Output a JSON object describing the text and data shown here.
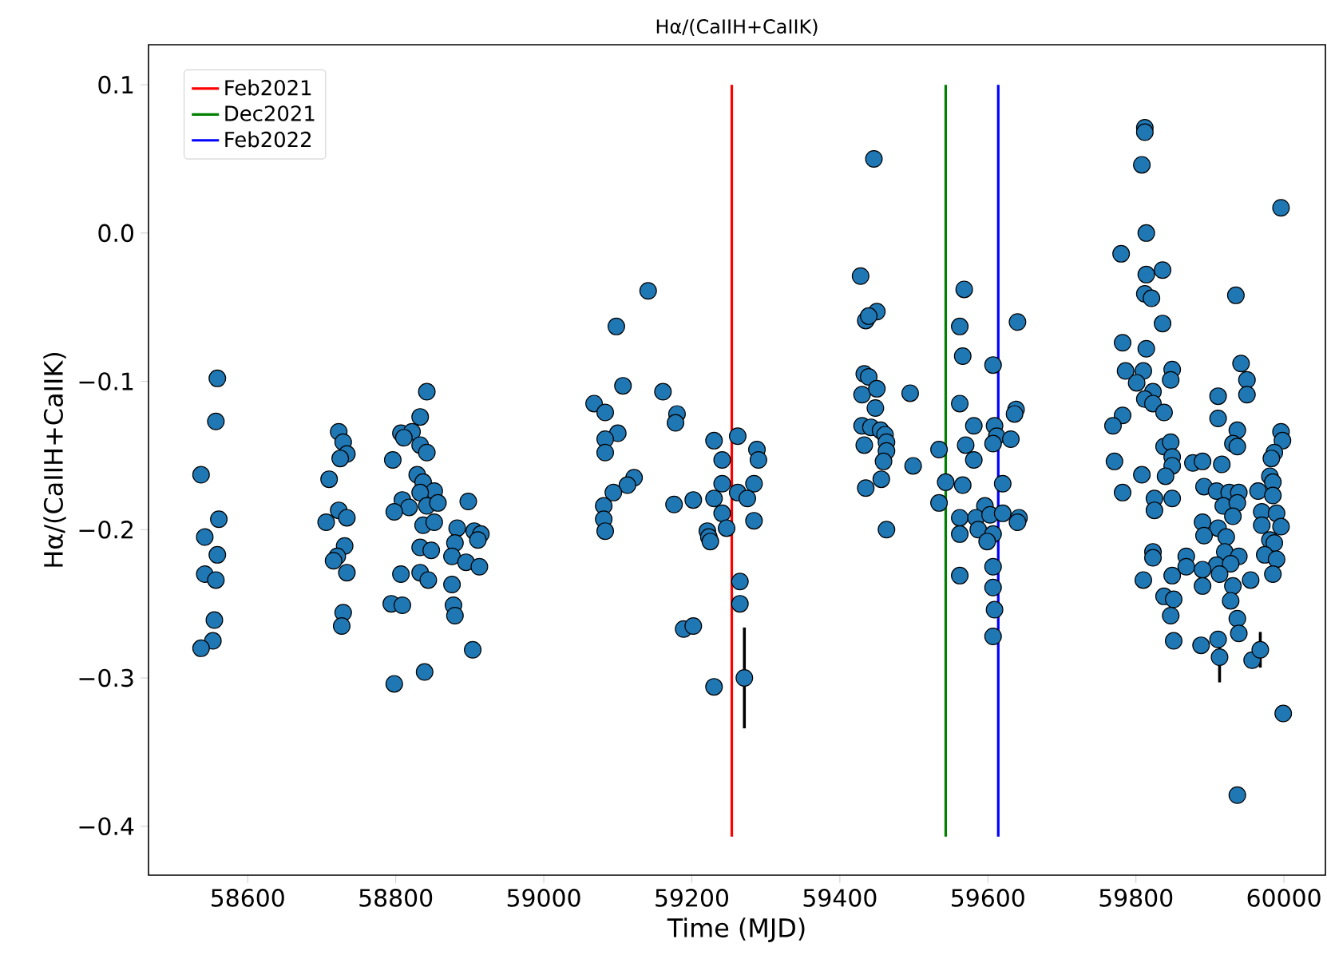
{
  "chart_data": {
    "type": "scatter",
    "title": "Hα/(CaIIH+CaIIK)",
    "xlabel": "Time (MJD)",
    "ylabel": "Hα/(CaIIH+CaIIK)",
    "xlim": [
      58466,
      60056
    ],
    "ylim": [
      -0.433,
      0.127
    ],
    "xticks": [
      58600,
      58800,
      59000,
      59200,
      59400,
      59600,
      59800,
      60000
    ],
    "yticks": [
      {
        "value": -0.4,
        "label": "−0.4"
      },
      {
        "value": -0.3,
        "label": "−0.3"
      },
      {
        "value": -0.2,
        "label": "−0.2"
      },
      {
        "value": -0.1,
        "label": "−0.1"
      },
      {
        "value": 0,
        "label": "0.0"
      },
      {
        "value": 0.1,
        "label": "0.1"
      }
    ],
    "marker": "circle",
    "legend": "top left",
    "grid": false,
    "series": [
      {
        "color": "#1f77b4",
        "x": [
          58559,
          58557,
          58537,
          58561,
          58542,
          58559,
          58542,
          58557,
          58555,
          58553,
          58537,
          58723,
          58729,
          58734,
          58725,
          58710,
          58723,
          58734,
          58706,
          58731,
          58721,
          58716,
          58734,
          58729,
          58727,
          58842,
          58833,
          58807,
          58822,
          58811,
          58833,
          58842,
          58796,
          58829,
          58837,
          58852,
          58833,
          58809,
          58818,
          58798,
          58842,
          58857,
          58898,
          58837,
          58852,
          58883,
          58906,
          58915,
          58880,
          58911,
          58833,
          58848,
          58876,
          58895,
          58913,
          58807,
          58833,
          58844,
          58876,
          58794,
          58809,
          58878,
          58880,
          58904,
          58839,
          58798,
          59141,
          59098,
          59107,
          59161,
          59068,
          59083,
          59180,
          59178,
          59100,
          59083,
          59230,
          59262,
          59288,
          59290,
          59083,
          59241,
          59122,
          59113,
          59094,
          59081,
          59176,
          59202,
          59241,
          59262,
          59284,
          59230,
          59275,
          59081,
          59241,
          59284,
          59083,
          59221,
          59223,
          59225,
          59247,
          59265,
          59265,
          59189,
          59202,
          59230,
          59446,
          59428,
          59568,
          59435,
          59450,
          59439,
          59562,
          59640,
          59566,
          59607,
          59433,
          59439,
          59430,
          59450,
          59495,
          59448,
          59562,
          59638,
          59636,
          59430,
          59442,
          59455,
          59461,
          59463,
          59581,
          59609,
          59612,
          59631,
          59433,
          59463,
          59534,
          59570,
          59607,
          59459,
          59581,
          59499,
          59456,
          59435,
          59543,
          59566,
          59620,
          59534,
          59596,
          59562,
          59584,
          59603,
          59620,
          59642,
          59640,
          59463,
          59562,
          59587,
          59607,
          59599,
          59562,
          59607,
          59607,
          59609,
          59607,
          59812,
          59812,
          59808,
          59996,
          59814,
          59780,
          59814,
          59836,
          59812,
          59821,
          59935,
          59836,
          59782,
          59814,
          59942,
          59950,
          59950,
          59911,
          59786,
          59810,
          59849,
          59847,
          59801,
          59823,
          59812,
          59823,
          59838,
          59782,
          59911,
          59769,
          59937,
          59931,
          59937,
          59996,
          59998,
          59987,
          59983,
          59838,
          59847,
          59849,
          59849,
          59840,
          59771,
          59808,
          59877,
          59890,
          59916,
          59981,
          59985,
          59782,
          59892,
          59909,
          59926,
          59939,
          59965,
          59985,
          59825,
          59849,
          59825,
          59918,
          59937,
          59931,
          59970,
          59990,
          59890,
          59911,
          59970,
          59996,
          59892,
          59922,
          59981,
          59987,
          59823,
          59823,
          59868,
          59920,
          59939,
          59974,
          59990,
          59868,
          59909,
          59928,
          59890,
          59849,
          59913,
          59985,
          59810,
          59890,
          59955,
          59838,
          59851,
          59931,
          59928,
          59847,
          59937,
          59939,
          59851,
          59888,
          59911,
          59957,
          59999,
          59937
        ],
        "values": [
          -0.098,
          -0.127,
          -0.163,
          -0.193,
          -0.205,
          -0.217,
          -0.23,
          -0.234,
          -0.261,
          -0.275,
          -0.28,
          -0.134,
          -0.141,
          -0.149,
          -0.152,
          -0.166,
          -0.187,
          -0.192,
          -0.195,
          -0.211,
          -0.218,
          -0.221,
          -0.229,
          -0.256,
          -0.265,
          -0.107,
          -0.124,
          -0.135,
          -0.134,
          -0.138,
          -0.143,
          -0.148,
          -0.153,
          -0.163,
          -0.168,
          -0.174,
          -0.175,
          -0.18,
          -0.185,
          -0.188,
          -0.184,
          -0.182,
          -0.181,
          -0.197,
          -0.195,
          -0.199,
          -0.201,
          -0.203,
          -0.209,
          -0.207,
          -0.212,
          -0.214,
          -0.218,
          -0.222,
          -0.225,
          -0.23,
          -0.229,
          -0.234,
          -0.237,
          -0.25,
          -0.251,
          -0.251,
          -0.258,
          -0.281,
          -0.296,
          -0.304,
          -0.039,
          -0.063,
          -0.103,
          -0.107,
          -0.115,
          -0.121,
          -0.122,
          -0.128,
          -0.135,
          -0.139,
          -0.14,
          -0.137,
          -0.146,
          -0.153,
          -0.148,
          -0.153,
          -0.165,
          -0.17,
          -0.175,
          -0.184,
          -0.183,
          -0.18,
          -0.169,
          -0.175,
          -0.169,
          -0.179,
          -0.179,
          -0.193,
          -0.189,
          -0.194,
          -0.201,
          -0.201,
          -0.205,
          -0.208,
          -0.199,
          -0.235,
          -0.25,
          -0.267,
          -0.265,
          -0.306,
          0.05,
          -0.029,
          -0.038,
          -0.059,
          -0.053,
          -0.056,
          -0.063,
          -0.06,
          -0.083,
          -0.089,
          -0.095,
          -0.097,
          -0.109,
          -0.105,
          -0.108,
          -0.118,
          -0.115,
          -0.119,
          -0.122,
          -0.13,
          -0.131,
          -0.133,
          -0.136,
          -0.141,
          -0.13,
          -0.13,
          -0.137,
          -0.139,
          -0.143,
          -0.147,
          -0.146,
          -0.143,
          -0.142,
          -0.154,
          -0.153,
          -0.157,
          -0.166,
          -0.172,
          -0.168,
          -0.17,
          -0.169,
          -0.182,
          -0.184,
          -0.192,
          -0.192,
          -0.19,
          -0.189,
          -0.192,
          -0.195,
          -0.2,
          -0.203,
          -0.2,
          -0.203,
          -0.208,
          -0.231,
          -0.225,
          -0.239,
          -0.254,
          -0.272,
          0.071,
          0.068,
          0.046,
          0.017,
          0.0,
          -0.014,
          -0.028,
          -0.025,
          -0.041,
          -0.044,
          -0.042,
          -0.061,
          -0.074,
          -0.078,
          -0.088,
          -0.099,
          -0.109,
          -0.11,
          -0.093,
          -0.093,
          -0.092,
          -0.099,
          -0.101,
          -0.107,
          -0.112,
          -0.115,
          -0.121,
          -0.123,
          -0.125,
          -0.13,
          -0.133,
          -0.142,
          -0.144,
          -0.134,
          -0.14,
          -0.148,
          -0.152,
          -0.144,
          -0.141,
          -0.151,
          -0.157,
          -0.164,
          -0.154,
          -0.163,
          -0.155,
          -0.154,
          -0.156,
          -0.164,
          -0.168,
          -0.175,
          -0.171,
          -0.174,
          -0.175,
          -0.175,
          -0.174,
          -0.177,
          -0.179,
          -0.179,
          -0.187,
          -0.184,
          -0.182,
          -0.191,
          -0.188,
          -0.189,
          -0.195,
          -0.199,
          -0.197,
          -0.198,
          -0.204,
          -0.205,
          -0.207,
          -0.209,
          -0.215,
          -0.219,
          -0.218,
          -0.215,
          -0.218,
          -0.217,
          -0.22,
          -0.225,
          -0.224,
          -0.223,
          -0.227,
          -0.231,
          -0.23,
          -0.23,
          -0.234,
          -0.238,
          -0.234,
          -0.245,
          -0.247,
          -0.238,
          -0.248,
          -0.258,
          -0.26,
          -0.27,
          -0.275,
          -0.278,
          -0.274,
          -0.288,
          -0.324,
          -0.379
        ]
      },
      {
        "color": "#1f77b4",
        "x": [
          59271,
          59913,
          59968
        ],
        "values": [
          -0.3,
          -0.286,
          -0.281
        ],
        "errors": [
          0.034,
          0.017,
          0.012
        ]
      },
      {
        "type": "line",
        "name": "Feb2021",
        "color": "#ff0000",
        "marker": "none",
        "x": [
          59254,
          59254
        ],
        "values": [
          -0.407,
          0.1
        ]
      },
      {
        "type": "line",
        "name": "Dec2021",
        "color": "#008000",
        "marker": "none",
        "x": [
          59543,
          59543
        ],
        "values": [
          -0.407,
          0.1
        ]
      },
      {
        "type": "line",
        "name": "Feb2022",
        "color": "#0000ff",
        "marker": "none",
        "x": [
          59614,
          59614
        ],
        "values": [
          -0.407,
          0.1
        ]
      }
    ]
  }
}
